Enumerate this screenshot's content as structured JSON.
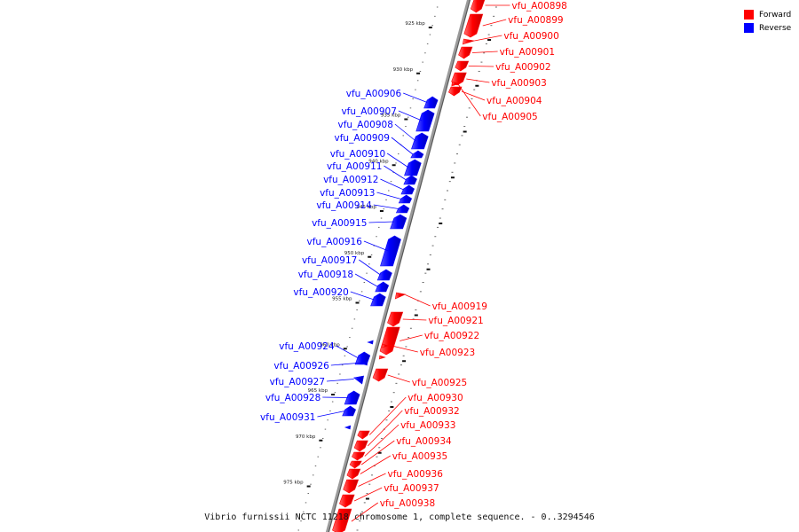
{
  "colors": {
    "forward": "#ff0000",
    "reverse": "#0000ff",
    "backbone": "#888888"
  },
  "legend": [
    {
      "label": "Forward",
      "color": "#ff0000"
    },
    {
      "label": "Reverse",
      "color": "#0000ff"
    }
  ],
  "caption": "Vibrio furnissii NCTC 11218 chromosome 1, complete sequence. - 0..3294546",
  "ticks": [
    {
      "kbp": 925,
      "label": "925 kbp"
    },
    {
      "kbp": 930,
      "label": "930 kbp"
    },
    {
      "kbp": 935,
      "label": "935 kbp"
    },
    {
      "kbp": 940,
      "label": "940 kbp"
    },
    {
      "kbp": 945,
      "label": "945 kbp"
    },
    {
      "kbp": 950,
      "label": "950 kbp"
    },
    {
      "kbp": 955,
      "label": "955 kbp"
    },
    {
      "kbp": 960,
      "label": "960 kbp"
    },
    {
      "kbp": 965,
      "label": "965 kbp"
    },
    {
      "kbp": 970,
      "label": "970 kbp"
    },
    {
      "kbp": 975,
      "label": "975 kbp"
    }
  ],
  "genes": [
    {
      "id": "vfu_A00898",
      "strand": "forward"
    },
    {
      "id": "vfu_A00899",
      "strand": "forward"
    },
    {
      "id": "vfu_A00900",
      "strand": "forward"
    },
    {
      "id": "vfu_A00901",
      "strand": "forward"
    },
    {
      "id": "vfu_A00902",
      "strand": "forward"
    },
    {
      "id": "vfu_A00903",
      "strand": "forward"
    },
    {
      "id": "vfu_A00904",
      "strand": "forward"
    },
    {
      "id": "vfu_A00905",
      "strand": "forward"
    },
    {
      "id": "vfu_A00906",
      "strand": "reverse"
    },
    {
      "id": "vfu_A00907",
      "strand": "reverse"
    },
    {
      "id": "vfu_A00908",
      "strand": "reverse"
    },
    {
      "id": "vfu_A00909",
      "strand": "reverse"
    },
    {
      "id": "vfu_A00910",
      "strand": "reverse"
    },
    {
      "id": "vfu_A00911",
      "strand": "reverse"
    },
    {
      "id": "vfu_A00912",
      "strand": "reverse"
    },
    {
      "id": "vfu_A00913",
      "strand": "reverse"
    },
    {
      "id": "vfu_A00914",
      "strand": "reverse"
    },
    {
      "id": "vfu_A00915",
      "strand": "reverse"
    },
    {
      "id": "vfu_A00916",
      "strand": "reverse"
    },
    {
      "id": "vfu_A00917",
      "strand": "reverse"
    },
    {
      "id": "vfu_A00918",
      "strand": "reverse"
    },
    {
      "id": "vfu_A00920",
      "strand": "reverse"
    },
    {
      "id": "vfu_A00919",
      "strand": "forward"
    },
    {
      "id": "vfu_A00921",
      "strand": "forward"
    },
    {
      "id": "vfu_A00922",
      "strand": "forward"
    },
    {
      "id": "vfu_A00923",
      "strand": "forward"
    },
    {
      "id": "vfu_A00924",
      "strand": "reverse"
    },
    {
      "id": "vfu_A00926",
      "strand": "reverse"
    },
    {
      "id": "vfu_A00927",
      "strand": "reverse"
    },
    {
      "id": "vfu_A00928",
      "strand": "reverse"
    },
    {
      "id": "vfu_A00931",
      "strand": "reverse"
    },
    {
      "id": "vfu_A00925",
      "strand": "forward"
    },
    {
      "id": "vfu_A00930",
      "strand": "forward"
    },
    {
      "id": "vfu_A00932",
      "strand": "forward"
    },
    {
      "id": "vfu_A00933",
      "strand": "forward"
    },
    {
      "id": "vfu_A00934",
      "strand": "forward"
    },
    {
      "id": "vfu_A00935",
      "strand": "forward"
    },
    {
      "id": "vfu_A00936",
      "strand": "forward"
    },
    {
      "id": "vfu_A00937",
      "strand": "forward"
    },
    {
      "id": "vfu_A00938",
      "strand": "forward"
    }
  ]
}
